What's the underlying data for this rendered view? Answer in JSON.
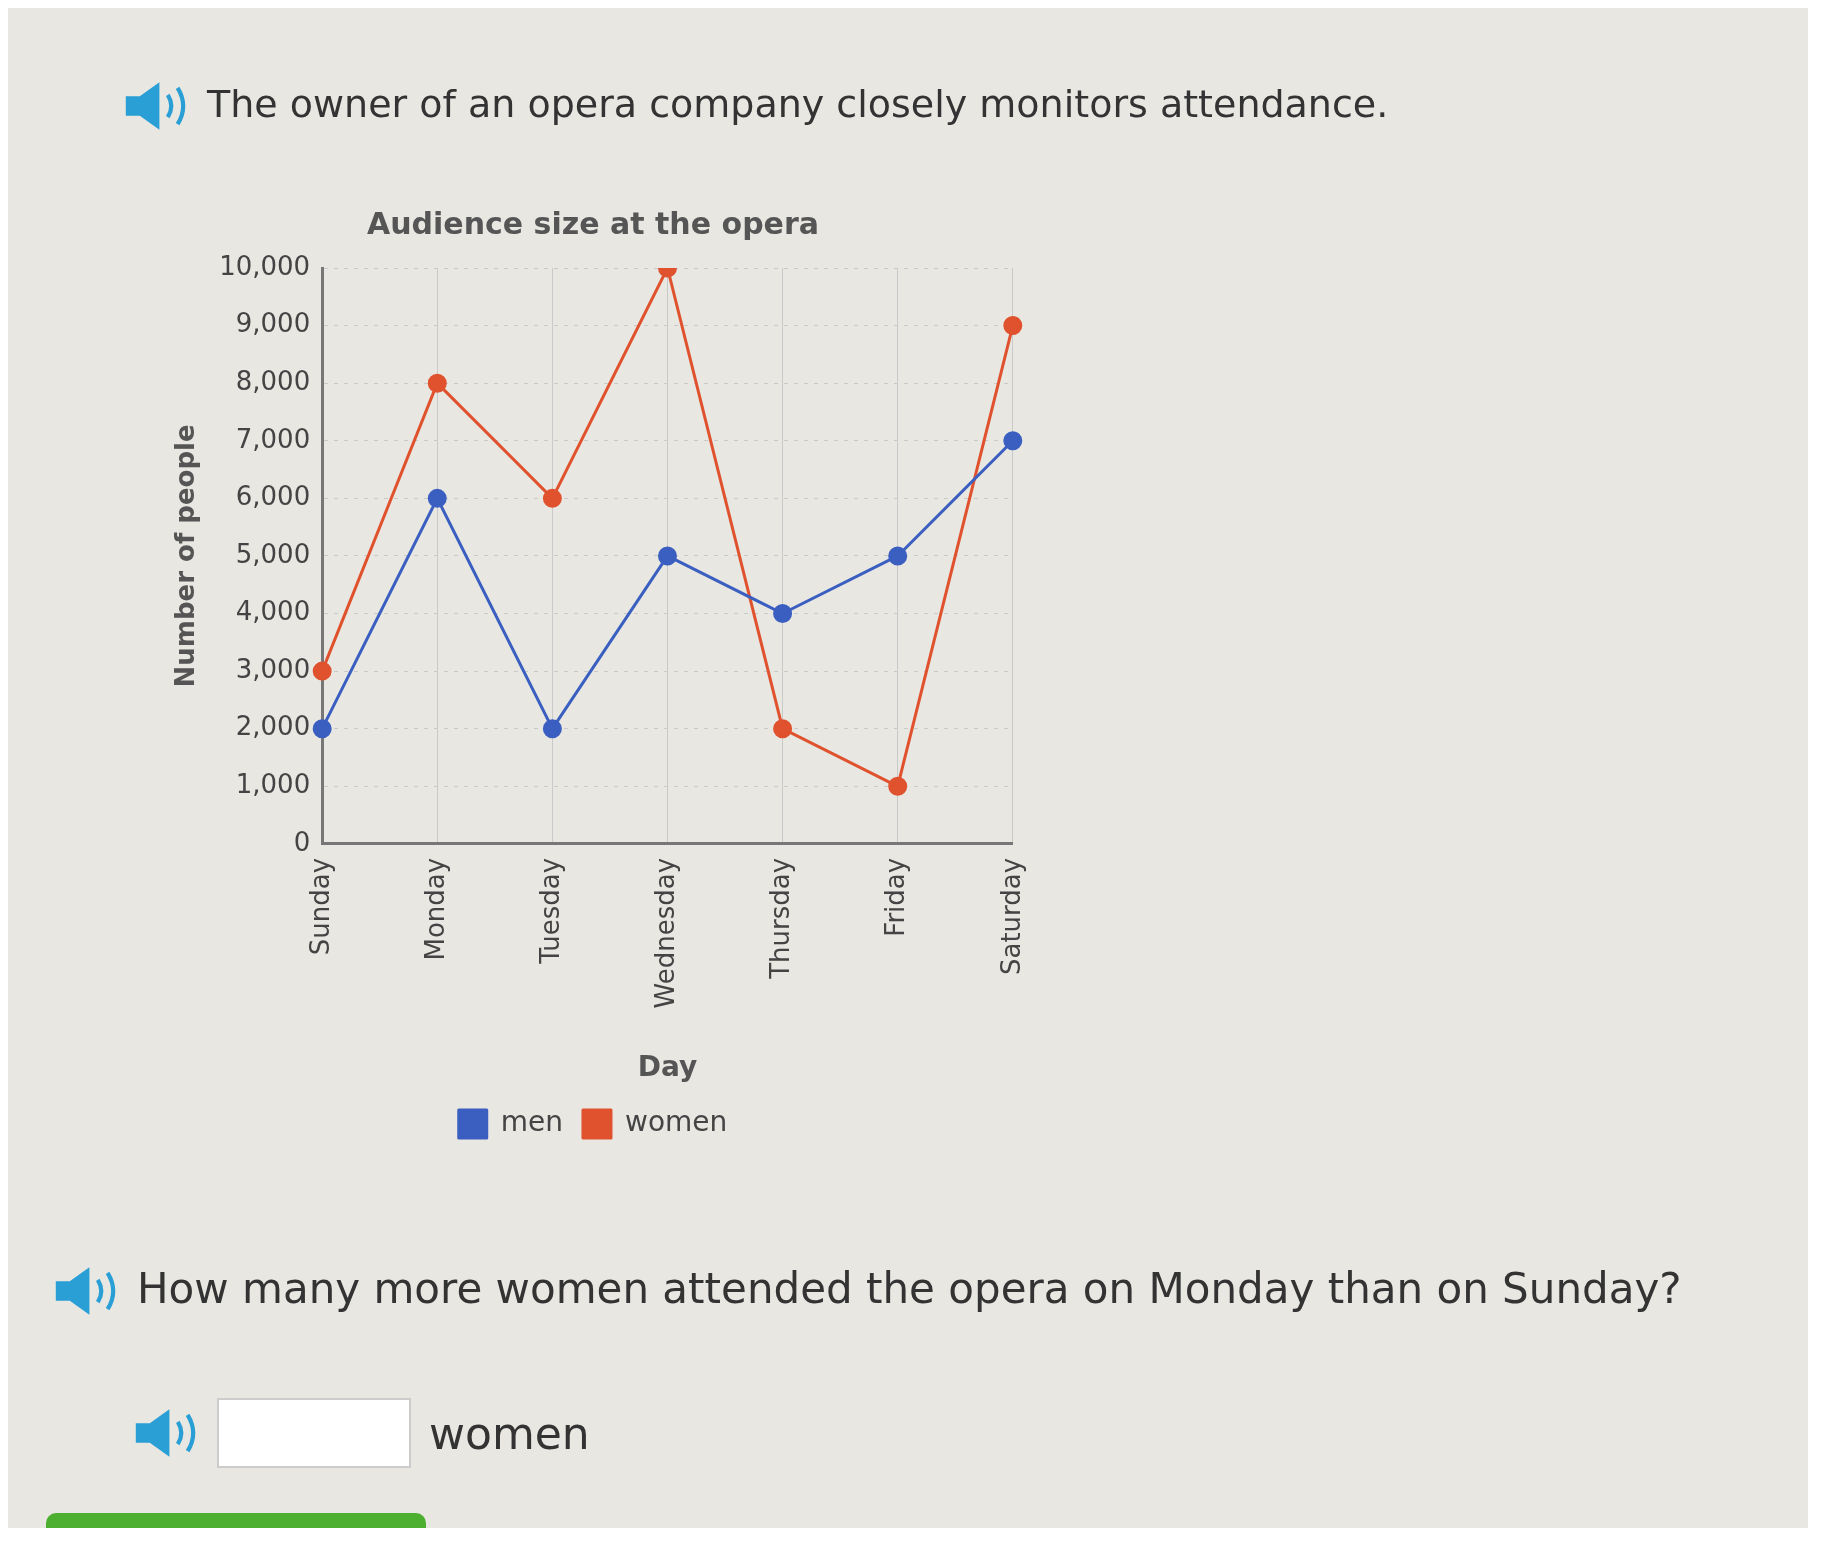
{
  "chart_data": {
    "type": "line",
    "title": "Audience size at the opera",
    "xlabel": "Day",
    "ylabel": "Number of people",
    "categories": [
      "Sunday",
      "Monday",
      "Tuesday",
      "Wednesday",
      "Thursday",
      "Friday",
      "Saturday"
    ],
    "series": [
      {
        "name": "men",
        "color": "#3b5fc0",
        "values": [
          2000,
          6000,
          2000,
          5000,
          4000,
          5000,
          7000
        ]
      },
      {
        "name": "women",
        "color": "#e0522e",
        "values": [
          3000,
          8000,
          6000,
          10000,
          2000,
          1000,
          9000
        ]
      }
    ],
    "ylim": [
      0,
      10000
    ],
    "yticks": [
      0,
      {
        "value": 1000,
        "label": "1,000"
      },
      {
        "value": 2000,
        "label": "2,000"
      },
      {
        "value": 3000,
        "label": "3,000"
      },
      {
        "value": 4000,
        "label": "4,000"
      },
      {
        "value": 5000,
        "label": "5,000"
      },
      {
        "value": 6000,
        "label": "6,000"
      },
      {
        "value": 7000,
        "label": "7,000"
      },
      {
        "value": 8000,
        "label": "8,000"
      },
      {
        "value": 9000,
        "label": "9,000"
      },
      {
        "value": 10000,
        "label": "10,000"
      }
    ],
    "grid": true,
    "legend": "bottom",
    "marker": "circle",
    "annotations": [
      "The owner of an opera company closely monitors attendance.",
      "How many more women attended the opera on Monday than on Sunday?",
      "women"
    ]
  }
}
